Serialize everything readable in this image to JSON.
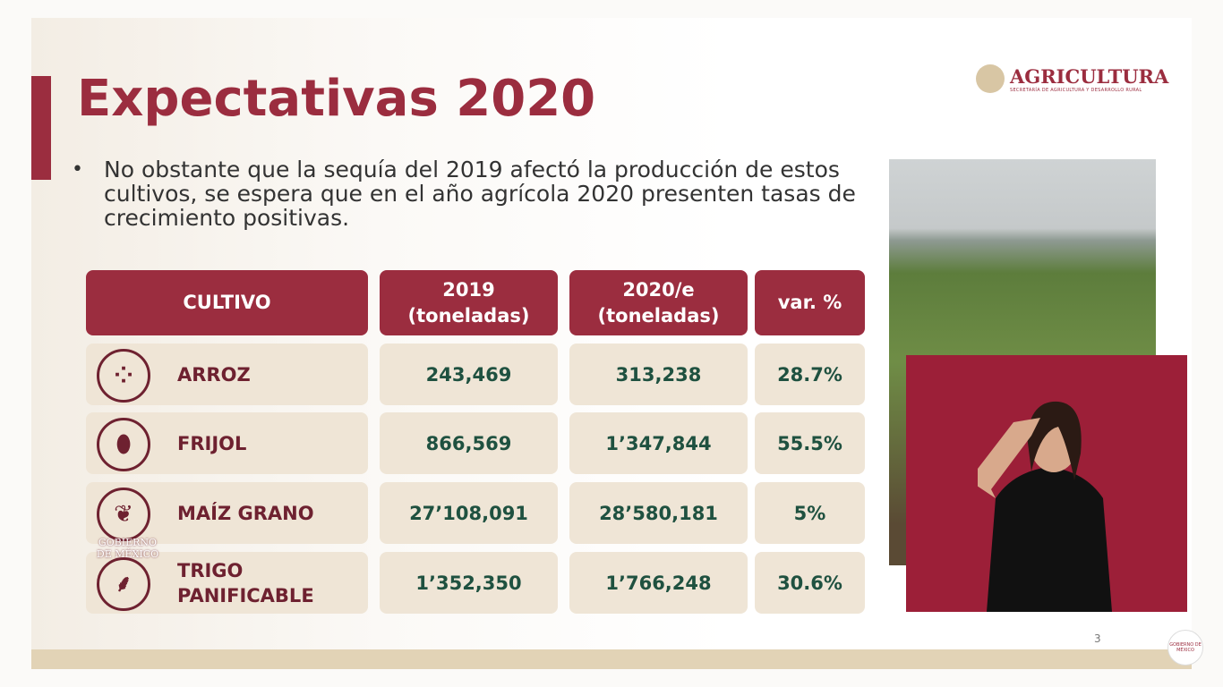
{
  "title": "Expectativas 2020",
  "bullet": "No obstante que la sequía del 2019 afectó la producción de estos cultivos, se espera que en el año agrícola 2020 presenten tasas de crecimiento positivas.",
  "logo": {
    "name": "AGRICULTURA",
    "subtitle": "SECRETARÍA DE AGRICULTURA Y DESARROLLO RURAL"
  },
  "table": {
    "headers": [
      "CULTIVO",
      "2019\n(toneladas)",
      "2020/e\n(toneladas)",
      "var. %"
    ],
    "rows": [
      {
        "crop": "ARROZ",
        "icon": "rice-icon",
        "y2019": "243,469",
        "y2020": "313,238",
        "var": "28.7%"
      },
      {
        "crop": "FRIJOL",
        "icon": "beans-icon",
        "y2019": "866,569",
        "y2020": "1’347,844",
        "var": "55.5%"
      },
      {
        "crop": "MAÍZ GRANO",
        "icon": "corn-icon",
        "y2019": "27’108,091",
        "y2020": "28’580,181",
        "var": "5%"
      },
      {
        "crop": "TRIGO\nPANIFICABLE",
        "icon": "wheat-icon",
        "y2019": "1’352,350",
        "y2020": "1’766,248",
        "var": "30.6%"
      }
    ]
  },
  "gov_logo": "GOBIERNO DE MÉXICO",
  "page_number": "3",
  "colors": {
    "accent": "#9b2d3f",
    "value": "#1f5140",
    "cell": "#efe5d6"
  }
}
